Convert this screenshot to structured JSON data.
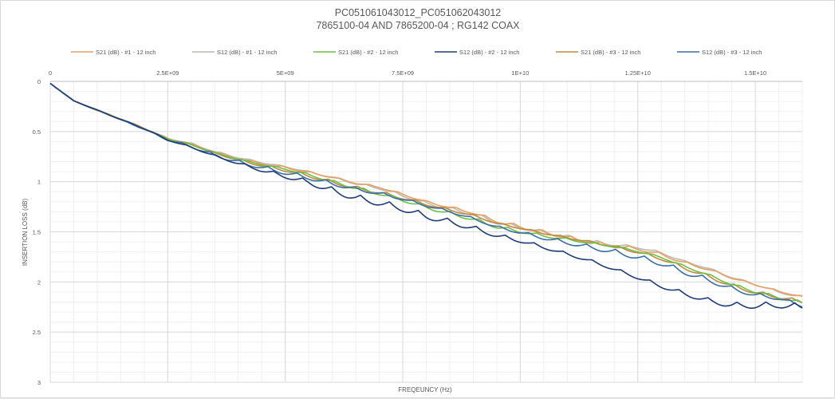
{
  "chart_data": {
    "type": "line",
    "title": "PC051061043012_PC051062043012",
    "subtitle": "7865100-04 AND 7865200-04 ; RG142 COAX",
    "xlabel": "FREQEUNCY (Hz)",
    "ylabel": "INSERTION LOSS (dB)",
    "xlim": [
      0,
      16000000000
    ],
    "ylim": [
      0,
      3
    ],
    "y_reversed": true,
    "x_axis_position": "top",
    "x_ticks": [
      0,
      2500000000,
      5000000000,
      7500000000,
      10000000000,
      12500000000,
      15000000000
    ],
    "x_tick_labels": [
      "0",
      "2.5E+09",
      "5E+09",
      "7.5E+09",
      "1E+10",
      "1.25E+10",
      "1.5E+10"
    ],
    "y_ticks": [
      0,
      0.5,
      1,
      1.5,
      2,
      2.5,
      3
    ],
    "y_tick_labels": [
      "0",
      "0.5",
      "1",
      "1.5",
      "2",
      "2.5",
      "3"
    ],
    "grid": true,
    "legend_position": "top",
    "series": [
      {
        "name": "S21 (dB) - #1 - 12 inch",
        "color": "#e6a064",
        "x": [
          0,
          500000000,
          1000000000,
          1500000000,
          2000000000,
          2500000000,
          3000000000,
          3500000000,
          4000000000,
          4500000000,
          5000000000,
          5500000000,
          6000000000,
          6500000000,
          7000000000,
          7500000000,
          8000000000,
          8500000000,
          9000000000,
          9500000000,
          10000000000,
          10500000000,
          11000000000,
          11500000000,
          12000000000,
          12500000000,
          13000000000,
          13500000000,
          14000000000,
          14500000000,
          15000000000,
          15500000000,
          16000000000
        ],
        "y": [
          0.02,
          0.19,
          0.28,
          0.36,
          0.45,
          0.55,
          0.6,
          0.68,
          0.74,
          0.79,
          0.83,
          0.88,
          0.93,
          0.99,
          1.03,
          1.1,
          1.17,
          1.22,
          1.27,
          1.35,
          1.4,
          1.45,
          1.5,
          1.55,
          1.59,
          1.62,
          1.68,
          1.77,
          1.84,
          1.93,
          2.0,
          2.07,
          2.12
        ]
      },
      {
        "name": "S12 (dB) - #1 - 12 inch",
        "color": "#c0b8b0",
        "x": [
          0,
          500000000,
          1000000000,
          1500000000,
          2000000000,
          2500000000,
          3000000000,
          3500000000,
          4000000000,
          4500000000,
          5000000000,
          5500000000,
          6000000000,
          6500000000,
          7000000000,
          7500000000,
          8000000000,
          8500000000,
          9000000000,
          9500000000,
          10000000000,
          10500000000,
          11000000000,
          11500000000,
          12000000000,
          12500000000,
          13000000000,
          13500000000,
          14000000000,
          14500000000,
          15000000000,
          15500000000,
          16000000000
        ],
        "y": [
          0.02,
          0.19,
          0.28,
          0.36,
          0.45,
          0.55,
          0.6,
          0.68,
          0.74,
          0.79,
          0.83,
          0.88,
          0.93,
          0.99,
          1.03,
          1.1,
          1.17,
          1.22,
          1.27,
          1.35,
          1.4,
          1.45,
          1.5,
          1.55,
          1.59,
          1.62,
          1.68,
          1.77,
          1.84,
          1.93,
          2.0,
          2.07,
          2.12
        ]
      },
      {
        "name": "S21 (dB) - #2 - 12 inch",
        "color": "#6cbe45",
        "x": [
          0,
          500000000,
          1000000000,
          1500000000,
          2000000000,
          2500000000,
          3000000000,
          3500000000,
          4000000000,
          4500000000,
          5000000000,
          5500000000,
          6000000000,
          6500000000,
          7000000000,
          7500000000,
          8000000000,
          8500000000,
          9000000000,
          9500000000,
          10000000000,
          10500000000,
          11000000000,
          11500000000,
          12000000000,
          12500000000,
          13000000000,
          13500000000,
          14000000000,
          14500000000,
          15000000000,
          15500000000,
          16000000000
        ],
        "y": [
          0.02,
          0.19,
          0.28,
          0.37,
          0.46,
          0.56,
          0.62,
          0.7,
          0.76,
          0.81,
          0.85,
          0.9,
          0.96,
          1.02,
          1.07,
          1.13,
          1.2,
          1.26,
          1.32,
          1.4,
          1.45,
          1.5,
          1.54,
          1.58,
          1.62,
          1.67,
          1.73,
          1.82,
          1.9,
          1.99,
          2.06,
          2.11,
          2.16
        ]
      },
      {
        "name": "S12 (dB) - #2 - 12 inch",
        "color": "#1f3d7a",
        "x": [
          0,
          500000000,
          1000000000,
          1500000000,
          2000000000,
          2500000000,
          3000000000,
          3500000000,
          4000000000,
          4500000000,
          5000000000,
          5500000000,
          6000000000,
          6500000000,
          7000000000,
          7500000000,
          8000000000,
          8500000000,
          9000000000,
          9500000000,
          10000000000,
          10500000000,
          11000000000,
          11500000000,
          12000000000,
          12500000000,
          13000000000,
          13500000000,
          14000000000,
          14500000000,
          15000000000,
          15500000000,
          16000000000
        ],
        "y": [
          0.02,
          0.19,
          0.28,
          0.37,
          0.46,
          0.57,
          0.64,
          0.72,
          0.79,
          0.85,
          0.9,
          0.95,
          1.02,
          1.09,
          1.14,
          1.2,
          1.28,
          1.34,
          1.41,
          1.49,
          1.55,
          1.62,
          1.69,
          1.76,
          1.84,
          1.92,
          2.0,
          2.07,
          2.13,
          2.17,
          2.17,
          2.16,
          2.18
        ]
      },
      {
        "name": "S21 (dB) - #3 - 12 inch",
        "color": "#c08a3e",
        "x": [
          0,
          500000000,
          1000000000,
          1500000000,
          2000000000,
          2500000000,
          3000000000,
          3500000000,
          4000000000,
          4500000000,
          5000000000,
          5500000000,
          6000000000,
          6500000000,
          7000000000,
          7500000000,
          8000000000,
          8500000000,
          9000000000,
          9500000000,
          10000000000,
          10500000000,
          11000000000,
          11500000000,
          12000000000,
          12500000000,
          13000000000,
          13500000000,
          14000000000,
          14500000000,
          15000000000,
          15500000000,
          16000000000
        ],
        "y": [
          0.02,
          0.19,
          0.28,
          0.37,
          0.46,
          0.56,
          0.61,
          0.69,
          0.75,
          0.8,
          0.84,
          0.89,
          0.95,
          1.01,
          1.06,
          1.12,
          1.19,
          1.25,
          1.31,
          1.39,
          1.44,
          1.49,
          1.53,
          1.57,
          1.61,
          1.66,
          1.72,
          1.81,
          1.89,
          1.98,
          2.05,
          2.1,
          2.15
        ]
      },
      {
        "name": "S12 (dB) - #3 - 12 inch",
        "color": "#3a6fa8",
        "x": [
          0,
          500000000,
          1000000000,
          1500000000,
          2000000000,
          2500000000,
          3000000000,
          3500000000,
          4000000000,
          4500000000,
          5000000000,
          5500000000,
          6000000000,
          6500000000,
          7000000000,
          7500000000,
          8000000000,
          8500000000,
          9000000000,
          9500000000,
          10000000000,
          10500000000,
          11000000000,
          11500000000,
          12000000000,
          12500000000,
          13000000000,
          13500000000,
          14000000000,
          14500000000,
          15000000000,
          15500000000,
          16000000000
        ],
        "y": [
          0.02,
          0.19,
          0.28,
          0.37,
          0.46,
          0.56,
          0.62,
          0.7,
          0.76,
          0.81,
          0.86,
          0.91,
          0.97,
          1.03,
          1.08,
          1.14,
          1.21,
          1.27,
          1.34,
          1.42,
          1.47,
          1.52,
          1.56,
          1.6,
          1.64,
          1.69,
          1.75,
          1.84,
          1.92,
          2.01,
          2.08,
          2.12,
          2.2
        ]
      }
    ]
  }
}
